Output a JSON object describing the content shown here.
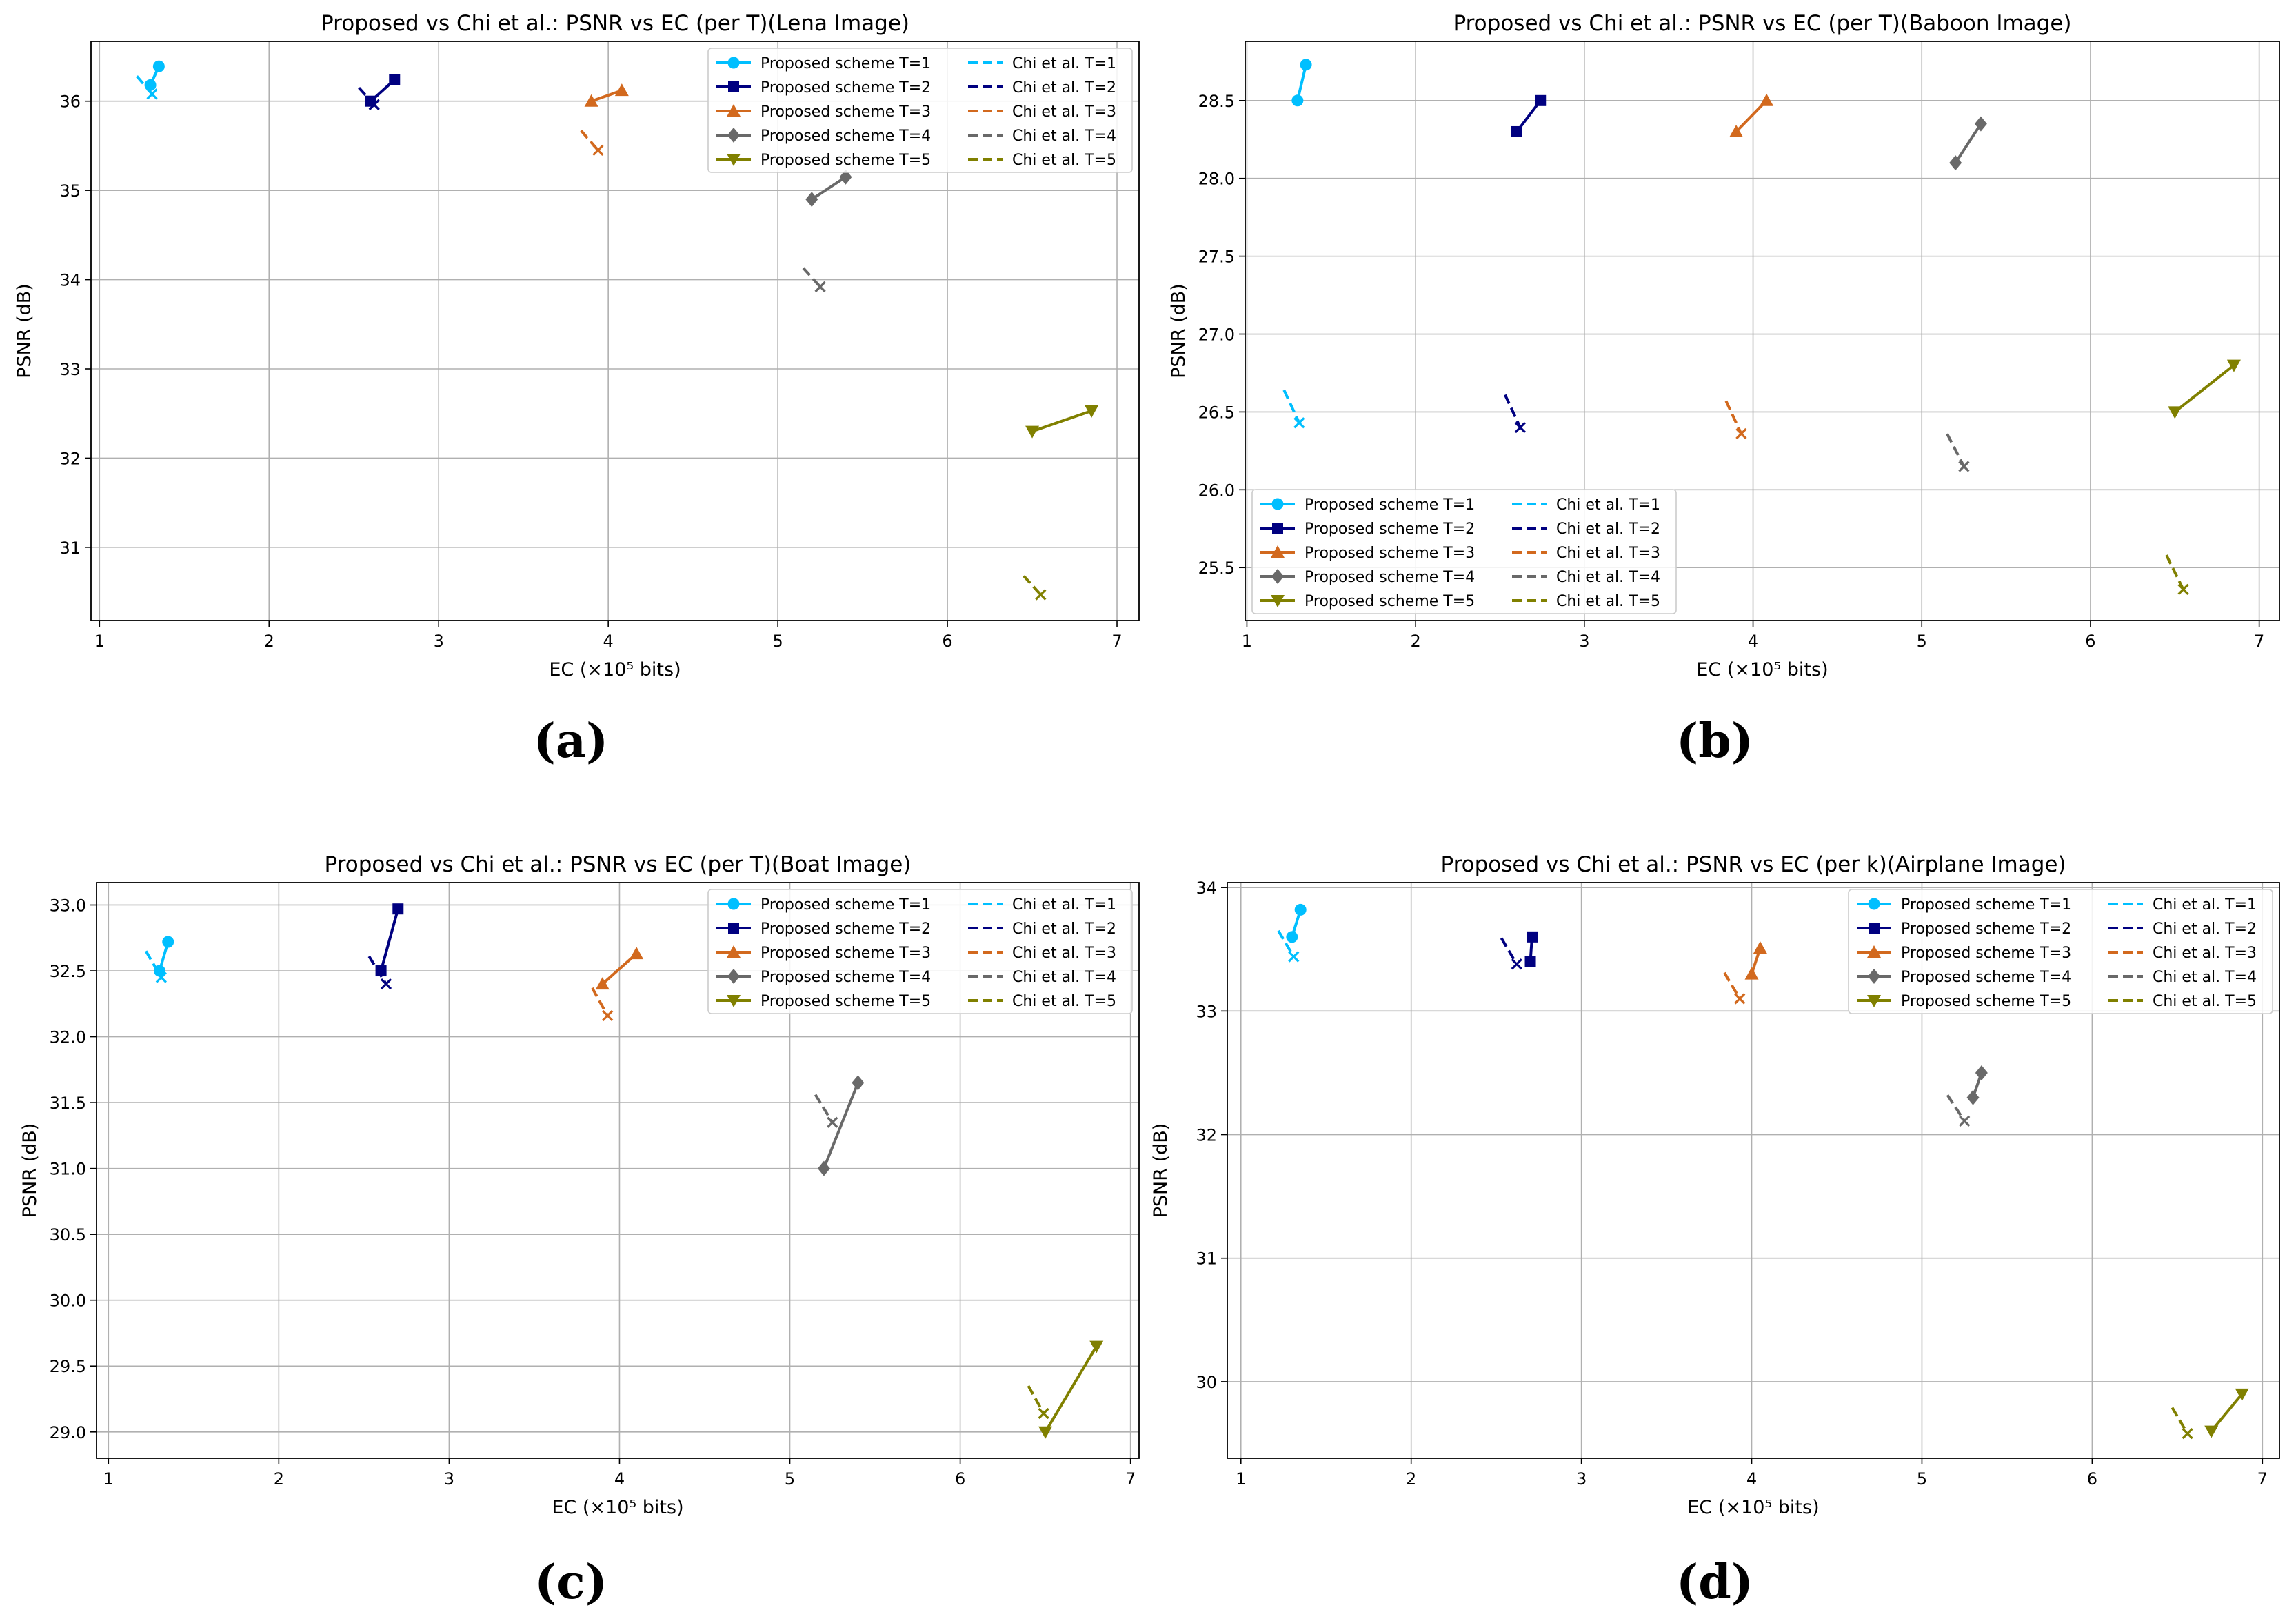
{
  "figure": {
    "panels": [
      {
        "label": "(a)"
      },
      {
        "label": "(b)"
      },
      {
        "label": "(c)"
      },
      {
        "label": "(d)"
      }
    ]
  },
  "chart_data": [
    {
      "type": "line",
      "title": "Proposed vs Chi et al.: PSNR vs EC (per T)(Lena Image)",
      "xlabel": "EC (×10⁵ bits)",
      "ylabel": "PSNR (dB)",
      "xlim": [
        0.95,
        7.13
      ],
      "ylim": [
        30.18,
        36.67
      ],
      "xticks": [
        1,
        2,
        3,
        4,
        5,
        6,
        7
      ],
      "yticks": [
        31,
        32,
        33,
        34,
        35,
        36
      ],
      "ytick_labels": [
        "31",
        "32",
        "33",
        "34",
        "35",
        "36"
      ],
      "grid": true,
      "legend_position": "top-right",
      "series": [
        {
          "name": "Proposed scheme T=1",
          "color": "#00BFFF",
          "style": "solid",
          "marker": "circle",
          "x": [
            1.3,
            1.35
          ],
          "y": [
            36.18,
            36.39
          ]
        },
        {
          "name": "Proposed scheme T=2",
          "color": "#000080",
          "style": "solid",
          "marker": "square",
          "x": [
            2.6,
            2.74
          ],
          "y": [
            36.0,
            36.24
          ]
        },
        {
          "name": "Proposed scheme T=3",
          "color": "#D2691E",
          "style": "solid",
          "marker": "triangle-up",
          "x": [
            3.9,
            4.08
          ],
          "y": [
            36.0,
            36.12
          ]
        },
        {
          "name": "Proposed scheme T=4",
          "color": "#696969",
          "style": "solid",
          "marker": "diamond",
          "x": [
            5.2,
            5.4
          ],
          "y": [
            34.9,
            35.15
          ]
        },
        {
          "name": "Proposed scheme T=5",
          "color": "#808000",
          "style": "solid",
          "marker": "triangle-down",
          "x": [
            6.5,
            6.85
          ],
          "y": [
            32.3,
            32.53
          ]
        },
        {
          "name": "Chi et al. T=1",
          "color": "#00BFFF",
          "style": "dashed",
          "marker": "x",
          "x": [
            1.22,
            1.31
          ],
          "y": [
            36.28,
            36.08
          ]
        },
        {
          "name": "Chi et al. T=2",
          "color": "#000080",
          "style": "dashed",
          "marker": "x",
          "x": [
            2.53,
            2.62
          ],
          "y": [
            36.15,
            35.96
          ]
        },
        {
          "name": "Chi et al. T=3",
          "color": "#D2691E",
          "style": "dashed",
          "marker": "x",
          "x": [
            3.84,
            3.94
          ],
          "y": [
            35.67,
            35.45
          ]
        },
        {
          "name": "Chi et al. T=4",
          "color": "#696969",
          "style": "dashed",
          "marker": "x",
          "x": [
            5.15,
            5.25
          ],
          "y": [
            34.13,
            33.92
          ]
        },
        {
          "name": "Chi et al. T=5",
          "color": "#808000",
          "style": "dashed",
          "marker": "x",
          "x": [
            6.45,
            6.55
          ],
          "y": [
            30.68,
            30.47
          ]
        }
      ]
    },
    {
      "type": "line",
      "title": "Proposed vs Chi et al.: PSNR vs EC (per T)(Baboon Image)",
      "xlabel": "EC (×10⁵ bits)",
      "ylabel": "PSNR (dB)",
      "xlim": [
        0.99,
        7.12
      ],
      "ylim": [
        25.16,
        28.88
      ],
      "xticks": [
        1,
        2,
        3,
        4,
        5,
        6,
        7
      ],
      "yticks": [
        25.5,
        26.0,
        26.5,
        27.0,
        27.5,
        28.0,
        28.5
      ],
      "ytick_labels": [
        "25.5",
        "26.0",
        "26.5",
        "27.0",
        "27.5",
        "28.0",
        "28.5"
      ],
      "grid": true,
      "legend_position": "bottom-left",
      "series": [
        {
          "name": "Proposed scheme T=1",
          "color": "#00BFFF",
          "style": "solid",
          "marker": "circle",
          "x": [
            1.3,
            1.35
          ],
          "y": [
            28.5,
            28.73
          ]
        },
        {
          "name": "Proposed scheme T=2",
          "color": "#000080",
          "style": "solid",
          "marker": "square",
          "x": [
            2.6,
            2.74
          ],
          "y": [
            28.3,
            28.5
          ]
        },
        {
          "name": "Proposed scheme T=3",
          "color": "#D2691E",
          "style": "solid",
          "marker": "triangle-up",
          "x": [
            3.9,
            4.08
          ],
          "y": [
            28.3,
            28.5
          ]
        },
        {
          "name": "Proposed scheme T=4",
          "color": "#696969",
          "style": "solid",
          "marker": "diamond",
          "x": [
            5.2,
            5.35
          ],
          "y": [
            28.1,
            28.35
          ]
        },
        {
          "name": "Proposed scheme T=5",
          "color": "#808000",
          "style": "solid",
          "marker": "triangle-down",
          "x": [
            6.5,
            6.85
          ],
          "y": [
            26.5,
            26.8
          ]
        },
        {
          "name": "Chi et al. T=1",
          "color": "#00BFFF",
          "style": "dashed",
          "marker": "x",
          "x": [
            1.22,
            1.31
          ],
          "y": [
            26.64,
            26.43
          ]
        },
        {
          "name": "Chi et al. T=2",
          "color": "#000080",
          "style": "dashed",
          "marker": "x",
          "x": [
            2.53,
            2.62
          ],
          "y": [
            26.61,
            26.4
          ]
        },
        {
          "name": "Chi et al. T=3",
          "color": "#D2691E",
          "style": "dashed",
          "marker": "x",
          "x": [
            3.84,
            3.93
          ],
          "y": [
            26.57,
            26.36
          ]
        },
        {
          "name": "Chi et al. T=4",
          "color": "#696969",
          "style": "dashed",
          "marker": "x",
          "x": [
            5.15,
            5.25
          ],
          "y": [
            26.36,
            26.15
          ]
        },
        {
          "name": "Chi et al. T=5",
          "color": "#808000",
          "style": "dashed",
          "marker": "x",
          "x": [
            6.45,
            6.55
          ],
          "y": [
            25.58,
            25.36
          ]
        }
      ]
    },
    {
      "type": "line",
      "title": "Proposed vs Chi et al.: PSNR vs EC (per T)(Boat Image)",
      "xlabel": "EC (×10⁵ bits)",
      "ylabel": "PSNR (dB)",
      "xlim": [
        0.93,
        7.05
      ],
      "ylim": [
        28.8,
        33.17
      ],
      "xticks": [
        1,
        2,
        3,
        4,
        5,
        6,
        7
      ],
      "yticks": [
        29.0,
        29.5,
        30.0,
        30.5,
        31.0,
        31.5,
        32.0,
        32.5,
        33.0
      ],
      "ytick_labels": [
        "29.0",
        "29.5",
        "30.0",
        "30.5",
        "31.0",
        "31.5",
        "32.0",
        "32.5",
        "33.0"
      ],
      "grid": true,
      "legend_position": "top-right",
      "series": [
        {
          "name": "Proposed scheme T=1",
          "color": "#00BFFF",
          "style": "solid",
          "marker": "circle",
          "x": [
            1.3,
            1.35
          ],
          "y": [
            32.5,
            32.72
          ]
        },
        {
          "name": "Proposed scheme T=2",
          "color": "#000080",
          "style": "solid",
          "marker": "square",
          "x": [
            2.6,
            2.7
          ],
          "y": [
            32.5,
            32.97
          ]
        },
        {
          "name": "Proposed scheme T=3",
          "color": "#D2691E",
          "style": "solid",
          "marker": "triangle-up",
          "x": [
            3.9,
            4.1
          ],
          "y": [
            32.4,
            32.63
          ]
        },
        {
          "name": "Proposed scheme T=4",
          "color": "#696969",
          "style": "solid",
          "marker": "diamond",
          "x": [
            5.2,
            5.4
          ],
          "y": [
            31.0,
            31.65
          ]
        },
        {
          "name": "Proposed scheme T=5",
          "color": "#808000",
          "style": "solid",
          "marker": "triangle-down",
          "x": [
            6.5,
            6.8
          ],
          "y": [
            29.0,
            29.65
          ]
        },
        {
          "name": "Chi et al. T=1",
          "color": "#00BFFF",
          "style": "dashed",
          "marker": "x",
          "x": [
            1.22,
            1.31
          ],
          "y": [
            32.65,
            32.45
          ]
        },
        {
          "name": "Chi et al. T=2",
          "color": "#000080",
          "style": "dashed",
          "marker": "x",
          "x": [
            2.53,
            2.63
          ],
          "y": [
            32.61,
            32.4
          ]
        },
        {
          "name": "Chi et al. T=3",
          "color": "#D2691E",
          "style": "dashed",
          "marker": "x",
          "x": [
            3.84,
            3.93
          ],
          "y": [
            32.37,
            32.16
          ]
        },
        {
          "name": "Chi et al. T=4",
          "color": "#696969",
          "style": "dashed",
          "marker": "x",
          "x": [
            5.15,
            5.25
          ],
          "y": [
            31.56,
            31.35
          ]
        },
        {
          "name": "Chi et al. T=5",
          "color": "#808000",
          "style": "dashed",
          "marker": "x",
          "x": [
            6.4,
            6.49
          ],
          "y": [
            29.35,
            29.14
          ]
        }
      ]
    },
    {
      "type": "line",
      "title": "Proposed vs Chi et al.: PSNR vs EC (per k)(Airplane Image)",
      "xlabel": "EC (×10⁵ bits)",
      "ylabel": "PSNR (dB)",
      "xlim": [
        0.92,
        7.1
      ],
      "ylim": [
        29.38,
        34.04
      ],
      "xticks": [
        1,
        2,
        3,
        4,
        5,
        6,
        7
      ],
      "yticks": [
        30,
        31,
        32,
        33,
        34
      ],
      "ytick_labels": [
        "30",
        "31",
        "32",
        "33",
        "34"
      ],
      "grid": true,
      "legend_position": "top-right",
      "series": [
        {
          "name": "Proposed scheme T=1",
          "color": "#00BFFF",
          "style": "solid",
          "marker": "circle",
          "x": [
            1.3,
            1.35
          ],
          "y": [
            33.6,
            33.82
          ]
        },
        {
          "name": "Proposed scheme T=2",
          "color": "#000080",
          "style": "solid",
          "marker": "square",
          "x": [
            2.7,
            2.71
          ],
          "y": [
            33.4,
            33.6
          ]
        },
        {
          "name": "Proposed scheme T=3",
          "color": "#D2691E",
          "style": "solid",
          "marker": "triangle-up",
          "x": [
            4.0,
            4.05
          ],
          "y": [
            33.3,
            33.51
          ]
        },
        {
          "name": "Proposed scheme T=4",
          "color": "#696969",
          "style": "solid",
          "marker": "diamond",
          "x": [
            5.3,
            5.35
          ],
          "y": [
            32.3,
            32.5
          ]
        },
        {
          "name": "Proposed scheme T=5",
          "color": "#808000",
          "style": "solid",
          "marker": "triangle-down",
          "x": [
            6.7,
            6.88
          ],
          "y": [
            29.6,
            29.9
          ]
        },
        {
          "name": "Chi et al. T=1",
          "color": "#00BFFF",
          "style": "dashed",
          "marker": "x",
          "x": [
            1.22,
            1.31
          ],
          "y": [
            33.65,
            33.44
          ]
        },
        {
          "name": "Chi et al. T=2",
          "color": "#000080",
          "style": "dashed",
          "marker": "x",
          "x": [
            2.53,
            2.62
          ],
          "y": [
            33.59,
            33.38
          ]
        },
        {
          "name": "Chi et al. T=3",
          "color": "#D2691E",
          "style": "dashed",
          "marker": "x",
          "x": [
            3.84,
            3.93
          ],
          "y": [
            33.31,
            33.1
          ]
        },
        {
          "name": "Chi et al. T=4",
          "color": "#696969",
          "style": "dashed",
          "marker": "x",
          "x": [
            5.15,
            5.25
          ],
          "y": [
            32.32,
            32.11
          ]
        },
        {
          "name": "Chi et al. T=5",
          "color": "#808000",
          "style": "dashed",
          "marker": "x",
          "x": [
            6.47,
            6.56
          ],
          "y": [
            29.79,
            29.58
          ]
        }
      ]
    }
  ]
}
